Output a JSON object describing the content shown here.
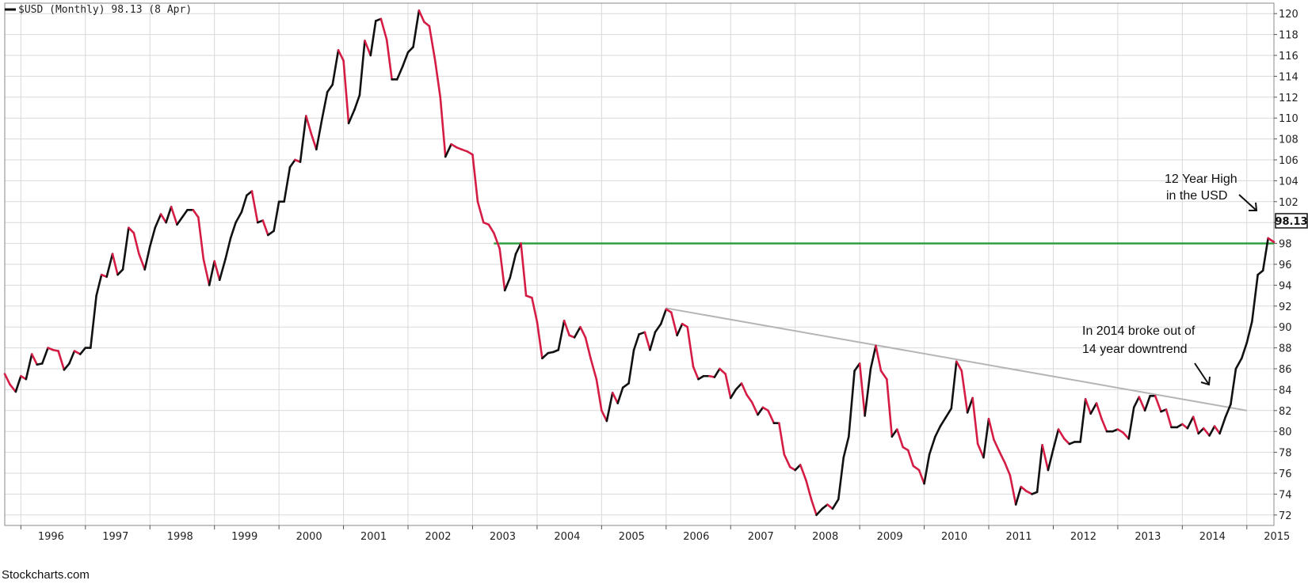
{
  "chart_data": {
    "type": "line",
    "title": "$USD (Monthly) 98.13 (8 Apr)",
    "last_value_label": "98.13",
    "colors": {
      "up": "#111111",
      "down": "#d41c44",
      "resistance": "#2ea043",
      "trendline": "#b5b5b5",
      "grid": "#d9d9d9"
    },
    "ylim": [
      71,
      121
    ],
    "yticks": [
      72,
      74,
      76,
      78,
      80,
      82,
      84,
      86,
      88,
      90,
      92,
      94,
      96,
      98,
      100,
      102,
      104,
      106,
      108,
      110,
      112,
      114,
      116,
      118,
      120
    ],
    "xlim": [
      1995.75,
      2015.42
    ],
    "xticks": [
      1996,
      1997,
      1998,
      1999,
      2000,
      2001,
      2002,
      2003,
      2004,
      2005,
      2006,
      2007,
      2008,
      2009,
      2010,
      2011,
      2012,
      2013,
      2014,
      2015
    ],
    "series": [
      {
        "points": [
          [
            1995.75,
            85.5
          ],
          [
            1995.83,
            84.5
          ],
          [
            1995.92,
            83.8
          ],
          [
            1996.0,
            85.3
          ],
          [
            1996.08,
            85.0
          ],
          [
            1996.17,
            87.4
          ],
          [
            1996.25,
            86.4
          ],
          [
            1996.33,
            86.5
          ],
          [
            1996.42,
            88.0
          ],
          [
            1996.5,
            87.8
          ],
          [
            1996.58,
            87.7
          ],
          [
            1996.67,
            85.9
          ],
          [
            1996.75,
            86.5
          ],
          [
            1996.83,
            87.7
          ],
          [
            1996.92,
            87.4
          ],
          [
            1997.0,
            88.0
          ],
          [
            1997.08,
            88.0
          ],
          [
            1997.17,
            93.0
          ],
          [
            1997.25,
            95.0
          ],
          [
            1997.33,
            94.8
          ],
          [
            1997.42,
            97.0
          ],
          [
            1997.5,
            95.0
          ],
          [
            1997.58,
            95.5
          ],
          [
            1997.67,
            99.5
          ],
          [
            1997.75,
            99.0
          ],
          [
            1997.83,
            97.0
          ],
          [
            1997.92,
            95.5
          ],
          [
            1998.0,
            97.7
          ],
          [
            1998.08,
            99.5
          ],
          [
            1998.17,
            100.8
          ],
          [
            1998.25,
            100.0
          ],
          [
            1998.33,
            101.5
          ],
          [
            1998.42,
            99.8
          ],
          [
            1998.5,
            100.5
          ],
          [
            1998.58,
            101.2
          ],
          [
            1998.67,
            101.2
          ],
          [
            1998.75,
            100.5
          ],
          [
            1998.83,
            96.5
          ],
          [
            1998.92,
            94.0
          ],
          [
            1999.0,
            96.3
          ],
          [
            1999.08,
            94.5
          ],
          [
            1999.17,
            96.5
          ],
          [
            1999.25,
            98.5
          ],
          [
            1999.33,
            100.0
          ],
          [
            1999.42,
            101.0
          ],
          [
            1999.5,
            102.6
          ],
          [
            1999.58,
            103.0
          ],
          [
            1999.67,
            100.0
          ],
          [
            1999.75,
            100.2
          ],
          [
            1999.83,
            98.8
          ],
          [
            1999.92,
            99.2
          ],
          [
            2000.0,
            102.0
          ],
          [
            2000.08,
            102.0
          ],
          [
            2000.17,
            105.3
          ],
          [
            2000.25,
            106.0
          ],
          [
            2000.33,
            105.8
          ],
          [
            2000.42,
            110.2
          ],
          [
            2000.5,
            108.5
          ],
          [
            2000.58,
            107.0
          ],
          [
            2000.67,
            110.0
          ],
          [
            2000.75,
            112.5
          ],
          [
            2000.83,
            113.2
          ],
          [
            2000.92,
            116.5
          ],
          [
            2001.0,
            115.5
          ],
          [
            2001.08,
            109.5
          ],
          [
            2001.17,
            110.8
          ],
          [
            2001.25,
            112.2
          ],
          [
            2001.33,
            117.4
          ],
          [
            2001.42,
            116.0
          ],
          [
            2001.5,
            119.3
          ],
          [
            2001.58,
            119.5
          ],
          [
            2001.67,
            117.5
          ],
          [
            2001.75,
            113.7
          ],
          [
            2001.83,
            113.7
          ],
          [
            2001.92,
            115.0
          ],
          [
            2002.0,
            116.3
          ],
          [
            2002.08,
            116.8
          ],
          [
            2002.17,
            120.3
          ],
          [
            2002.25,
            119.2
          ],
          [
            2002.33,
            118.8
          ],
          [
            2002.42,
            115.5
          ],
          [
            2002.5,
            112.0
          ],
          [
            2002.58,
            106.3
          ],
          [
            2002.67,
            107.5
          ],
          [
            2002.75,
            107.2
          ],
          [
            2002.83,
            107.0
          ],
          [
            2002.92,
            106.8
          ],
          [
            2003.0,
            106.5
          ],
          [
            2003.08,
            102.0
          ],
          [
            2003.17,
            100.0
          ],
          [
            2003.25,
            99.8
          ],
          [
            2003.33,
            99.0
          ],
          [
            2003.42,
            97.5
          ],
          [
            2003.5,
            93.5
          ],
          [
            2003.58,
            94.7
          ],
          [
            2003.67,
            97.0
          ],
          [
            2003.75,
            98.0
          ],
          [
            2003.83,
            93.0
          ],
          [
            2003.92,
            92.8
          ],
          [
            2004.0,
            90.5
          ],
          [
            2004.08,
            87.0
          ],
          [
            2004.17,
            87.5
          ],
          [
            2004.25,
            87.6
          ],
          [
            2004.33,
            87.8
          ],
          [
            2004.42,
            90.6
          ],
          [
            2004.5,
            89.2
          ],
          [
            2004.58,
            89.0
          ],
          [
            2004.67,
            90.0
          ],
          [
            2004.75,
            89.0
          ],
          [
            2004.83,
            87.0
          ],
          [
            2004.92,
            85.0
          ],
          [
            2005.0,
            82.0
          ],
          [
            2005.08,
            81.0
          ],
          [
            2005.17,
            83.7
          ],
          [
            2005.25,
            82.7
          ],
          [
            2005.33,
            84.2
          ],
          [
            2005.42,
            84.6
          ],
          [
            2005.5,
            87.8
          ],
          [
            2005.58,
            89.3
          ],
          [
            2005.67,
            89.5
          ],
          [
            2005.75,
            87.8
          ],
          [
            2005.83,
            89.5
          ],
          [
            2005.92,
            90.3
          ],
          [
            2006.0,
            91.7
          ],
          [
            2006.08,
            91.4
          ],
          [
            2006.17,
            89.2
          ],
          [
            2006.25,
            90.3
          ],
          [
            2006.33,
            90.0
          ],
          [
            2006.42,
            86.2
          ],
          [
            2006.5,
            85.0
          ],
          [
            2006.58,
            85.3
          ],
          [
            2006.67,
            85.3
          ],
          [
            2006.75,
            85.2
          ],
          [
            2006.83,
            86.0
          ],
          [
            2006.92,
            85.5
          ],
          [
            2007.0,
            83.2
          ],
          [
            2007.08,
            84.0
          ],
          [
            2007.17,
            84.6
          ],
          [
            2007.25,
            83.5
          ],
          [
            2007.33,
            82.8
          ],
          [
            2007.42,
            81.6
          ],
          [
            2007.5,
            82.3
          ],
          [
            2007.58,
            82.0
          ],
          [
            2007.67,
            80.8
          ],
          [
            2007.75,
            80.8
          ],
          [
            2007.83,
            77.8
          ],
          [
            2007.92,
            76.6
          ],
          [
            2008.0,
            76.3
          ],
          [
            2008.08,
            76.8
          ],
          [
            2008.17,
            75.3
          ],
          [
            2008.25,
            73.5
          ],
          [
            2008.33,
            72.0
          ],
          [
            2008.42,
            72.6
          ],
          [
            2008.5,
            73.0
          ],
          [
            2008.58,
            72.6
          ],
          [
            2008.67,
            73.5
          ],
          [
            2008.75,
            77.5
          ],
          [
            2008.83,
            79.5
          ],
          [
            2008.92,
            85.8
          ],
          [
            2009.0,
            86.5
          ],
          [
            2009.08,
            81.5
          ],
          [
            2009.17,
            86.0
          ],
          [
            2009.25,
            88.2
          ],
          [
            2009.33,
            85.8
          ],
          [
            2009.42,
            85.0
          ],
          [
            2009.5,
            79.5
          ],
          [
            2009.58,
            80.2
          ],
          [
            2009.67,
            78.5
          ],
          [
            2009.75,
            78.2
          ],
          [
            2009.83,
            76.7
          ],
          [
            2009.92,
            76.3
          ],
          [
            2010.0,
            75.0
          ],
          [
            2010.08,
            77.8
          ],
          [
            2010.17,
            79.5
          ],
          [
            2010.25,
            80.5
          ],
          [
            2010.33,
            81.3
          ],
          [
            2010.42,
            82.2
          ],
          [
            2010.5,
            86.7
          ],
          [
            2010.58,
            85.8
          ],
          [
            2010.67,
            81.8
          ],
          [
            2010.75,
            83.2
          ],
          [
            2010.83,
            78.8
          ],
          [
            2010.92,
            77.5
          ],
          [
            2011.0,
            81.2
          ],
          [
            2011.08,
            79.2
          ],
          [
            2011.17,
            78.0
          ],
          [
            2011.25,
            77.0
          ],
          [
            2011.33,
            75.8
          ],
          [
            2011.42,
            73.0
          ],
          [
            2011.5,
            74.7
          ],
          [
            2011.58,
            74.3
          ],
          [
            2011.67,
            74.0
          ],
          [
            2011.75,
            74.2
          ],
          [
            2011.83,
            78.7
          ],
          [
            2011.92,
            76.3
          ],
          [
            2012.0,
            78.3
          ],
          [
            2012.08,
            80.2
          ],
          [
            2012.17,
            79.3
          ],
          [
            2012.25,
            78.8
          ],
          [
            2012.33,
            79.0
          ],
          [
            2012.42,
            79.0
          ],
          [
            2012.5,
            83.1
          ],
          [
            2012.58,
            81.7
          ],
          [
            2012.67,
            82.7
          ],
          [
            2012.75,
            81.2
          ],
          [
            2012.83,
            80.0
          ],
          [
            2012.92,
            80.0
          ],
          [
            2013.0,
            80.2
          ],
          [
            2013.08,
            79.9
          ],
          [
            2013.17,
            79.3
          ],
          [
            2013.25,
            82.3
          ],
          [
            2013.33,
            83.3
          ],
          [
            2013.42,
            82.0
          ],
          [
            2013.5,
            83.4
          ],
          [
            2013.58,
            83.4
          ],
          [
            2013.67,
            81.9
          ],
          [
            2013.75,
            82.1
          ],
          [
            2013.83,
            80.4
          ],
          [
            2013.92,
            80.4
          ],
          [
            2014.0,
            80.7
          ],
          [
            2014.08,
            80.3
          ],
          [
            2014.17,
            81.4
          ],
          [
            2014.25,
            79.8
          ],
          [
            2014.33,
            80.3
          ],
          [
            2014.42,
            79.6
          ],
          [
            2014.5,
            80.5
          ],
          [
            2014.58,
            79.8
          ],
          [
            2014.67,
            81.4
          ],
          [
            2014.75,
            82.6
          ],
          [
            2014.83,
            86.0
          ],
          [
            2014.92,
            87.0
          ],
          [
            2015.0,
            88.5
          ],
          [
            2015.08,
            90.5
          ],
          [
            2015.17,
            95.0
          ],
          [
            2015.25,
            95.4
          ],
          [
            2015.33,
            98.5
          ],
          [
            2015.42,
            98.13
          ]
        ]
      }
    ],
    "resistance_line": {
      "y": 98.0,
      "x_start": 2003.33,
      "x_end": 2015.42
    },
    "trendline": {
      "start": [
        2006.0,
        91.8
      ],
      "end": [
        2015.0,
        82.0
      ]
    },
    "annotations": [
      {
        "lines": [
          "12 Year High",
          "in the USD"
        ]
      },
      {
        "lines": [
          "In 2014 broke out of",
          "14 year downtrend"
        ]
      }
    ],
    "source": "Stockcharts.com"
  }
}
